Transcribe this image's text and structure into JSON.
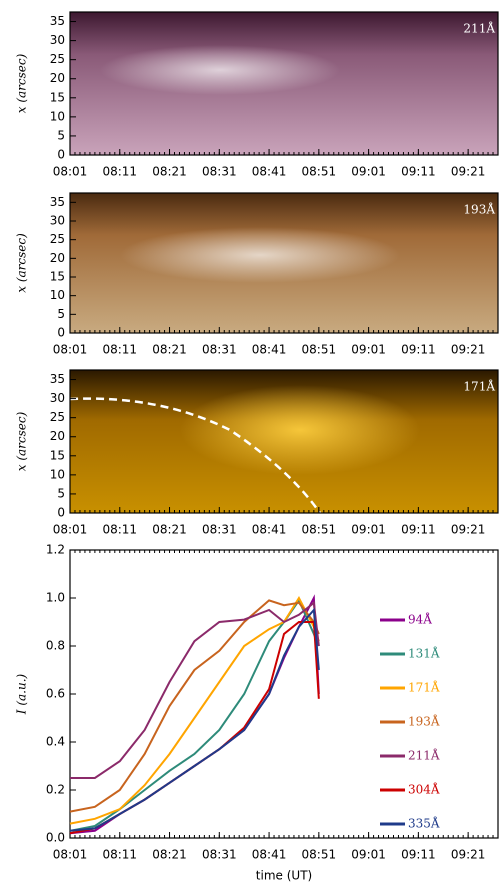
{
  "chart_data": [
    {
      "type": "image",
      "label": "211Å",
      "ylabel": "x (arcsec)",
      "xlim": [
        "08:01",
        "09:27"
      ],
      "xticks": [
        "08:01",
        "08:11",
        "08:21",
        "08:31",
        "08:41",
        "08:51",
        "09:01",
        "09:11",
        "09:21"
      ],
      "ylim": [
        0,
        37.5
      ],
      "yticks": [
        0,
        5,
        10,
        15,
        20,
        25,
        30,
        35
      ]
    },
    {
      "type": "image",
      "label": "193Å",
      "ylabel": "x (arcsec)",
      "xlim": [
        "08:01",
        "09:27"
      ],
      "xticks": [
        "08:01",
        "08:11",
        "08:21",
        "08:31",
        "08:41",
        "08:51",
        "09:01",
        "09:11",
        "09:21"
      ],
      "ylim": [
        0,
        37.5
      ],
      "yticks": [
        0,
        5,
        10,
        15,
        20,
        25,
        30,
        35
      ]
    },
    {
      "type": "image",
      "label": "171Å",
      "ylabel": "x (arcsec)",
      "xlim": [
        "08:01",
        "09:27"
      ],
      "xticks": [
        "08:01",
        "08:11",
        "08:21",
        "08:31",
        "08:41",
        "08:51",
        "09:01",
        "09:11",
        "09:21"
      ],
      "ylim": [
        0,
        37.5
      ],
      "yticks": [
        0,
        5,
        10,
        15,
        20,
        25,
        30,
        35
      ]
    },
    {
      "type": "line",
      "ylabel": "I (a.u.)",
      "xlabel": "time (UT)",
      "xlim": [
        "08:01",
        "09:27"
      ],
      "xticks": [
        "08:01",
        "08:11",
        "08:21",
        "08:31",
        "08:41",
        "08:51",
        "09:01",
        "09:11",
        "09:21"
      ],
      "ylim": [
        0,
        1.2
      ],
      "yticks": [
        {
          "value": 0,
          "label": "0.0"
        },
        0.2,
        0.4,
        0.6,
        0.8,
        {
          "value": 1,
          "label": "1.0"
        },
        1.2
      ],
      "x": [
        "08:01",
        "08:06",
        "08:11",
        "08:16",
        "08:21",
        "08:26",
        "08:31",
        "08:36",
        "08:41",
        "08:44",
        "08:47",
        "08:50",
        "08:51"
      ],
      "series": [
        {
          "name": "94Å",
          "color": "#8b008b",
          "values": [
            0.02,
            0.03,
            0.1,
            0.16,
            0.23,
            0.3,
            0.37,
            0.45,
            0.6,
            0.75,
            0.88,
            1.0,
            0.6
          ]
        },
        {
          "name": "131Å",
          "color": "#2e8b7a",
          "values": [
            0.03,
            0.05,
            0.12,
            0.2,
            0.28,
            0.35,
            0.45,
            0.6,
            0.82,
            0.9,
            0.99,
            0.85,
            0.8
          ]
        },
        {
          "name": "171Å",
          "color": "#ffa500",
          "values": [
            0.06,
            0.08,
            0.12,
            0.22,
            0.35,
            0.5,
            0.65,
            0.8,
            0.87,
            0.9,
            1.0,
            0.88,
            0.82
          ]
        },
        {
          "name": "193Å",
          "color": "#c8641e",
          "values": [
            0.11,
            0.13,
            0.2,
            0.35,
            0.55,
            0.7,
            0.78,
            0.9,
            0.99,
            0.97,
            0.98,
            0.9,
            0.85
          ]
        },
        {
          "name": "211Å",
          "color": "#8b2a6a",
          "values": [
            0.25,
            0.25,
            0.32,
            0.45,
            0.65,
            0.82,
            0.9,
            0.91,
            0.95,
            0.9,
            0.93,
            0.98,
            0.8
          ]
        },
        {
          "name": "304Å",
          "color": "#cc0000",
          "values": [
            0.02,
            0.04,
            0.1,
            0.16,
            0.23,
            0.3,
            0.37,
            0.46,
            0.62,
            0.85,
            0.9,
            0.9,
            0.58
          ]
        },
        {
          "name": "335Å",
          "color": "#1f3b8a",
          "values": [
            0.03,
            0.04,
            0.1,
            0.16,
            0.23,
            0.3,
            0.37,
            0.45,
            0.6,
            0.76,
            0.88,
            0.95,
            0.7
          ]
        }
      ]
    }
  ]
}
